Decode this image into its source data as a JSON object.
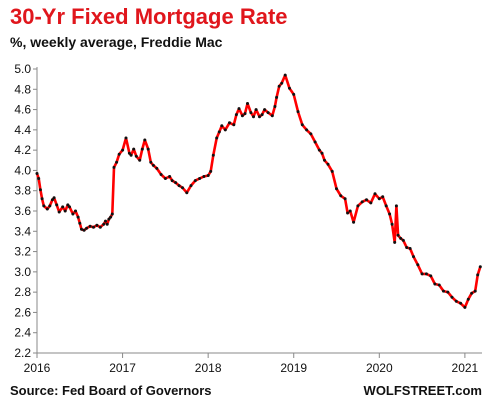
{
  "header": {
    "title": "30-Yr Fixed Mortgage Rate",
    "subtitle": "%, weekly average, Freddie Mac"
  },
  "footer": {
    "source": "Source: Fed Board of Governors",
    "brand": "WOLFSTREET.com"
  },
  "colors": {
    "line": "#ff0000",
    "marker": "#111111",
    "title": "#e0161c",
    "axis": "#888888"
  },
  "chart_data": {
    "type": "line",
    "title": "30-Yr Fixed Mortgage Rate",
    "subtitle": "%, weekly average, Freddie Mac",
    "xlabel": "",
    "ylabel": "",
    "x_is_decimal_year": true,
    "xlim": [
      2016.0,
      2021.2
    ],
    "ylim": [
      2.2,
      5.0
    ],
    "yticks": [
      2.2,
      2.4,
      2.6,
      2.8,
      3.0,
      3.2,
      3.4,
      3.6,
      3.8,
      4.0,
      4.2,
      4.4,
      4.6,
      4.8,
      5.0
    ],
    "ytick_labels": [
      "2.2",
      "2.4",
      "2.6",
      "2.8",
      "3.0",
      "3.2",
      "3.4",
      "3.6",
      "3.8",
      "4.0",
      "4.2",
      "4.4",
      "4.6",
      "4.8",
      "5.0"
    ],
    "xticks": [
      2016,
      2017,
      2018,
      2019,
      2020,
      2021
    ],
    "xtick_labels": [
      "2016",
      "2017",
      "2018",
      "2019",
      "2020",
      "2021"
    ],
    "grid": false,
    "legend": "none",
    "series": [
      {
        "x": [
          2016.0,
          2016.02,
          2016.04,
          2016.06,
          2016.08,
          2016.12,
          2016.15,
          2016.18,
          2016.2,
          2016.23,
          2016.26,
          2016.3,
          2016.33,
          2016.36,
          2016.38,
          2016.42,
          2016.45,
          2016.48,
          2016.5,
          2016.52,
          2016.55,
          2016.58,
          2016.62,
          2016.66,
          2016.7,
          2016.74,
          2016.78,
          2016.8,
          2016.82,
          2016.84,
          2016.86,
          2016.88,
          2016.9,
          2016.93,
          2016.96,
          2017.0,
          2017.04,
          2017.08,
          2017.1,
          2017.13,
          2017.16,
          2017.2,
          2017.23,
          2017.26,
          2017.3,
          2017.33,
          2017.36,
          2017.4,
          2017.45,
          2017.5,
          2017.55,
          2017.58,
          2017.62,
          2017.66,
          2017.7,
          2017.75,
          2017.8,
          2017.85,
          2017.9,
          2017.95,
          2018.0,
          2018.03,
          2018.06,
          2018.1,
          2018.13,
          2018.16,
          2018.2,
          2018.25,
          2018.3,
          2018.33,
          2018.36,
          2018.4,
          2018.43,
          2018.46,
          2018.5,
          2018.53,
          2018.56,
          2018.6,
          2018.63,
          2018.66,
          2018.7,
          2018.75,
          2018.78,
          2018.8,
          2018.83,
          2018.86,
          2018.9,
          2018.95,
          2019.0,
          2019.05,
          2019.1,
          2019.15,
          2019.2,
          2019.25,
          2019.3,
          2019.33,
          2019.36,
          2019.4,
          2019.45,
          2019.5,
          2019.55,
          2019.6,
          2019.63,
          2019.66,
          2019.7,
          2019.75,
          2019.8,
          2019.85,
          2019.9,
          2019.95,
          2020.0,
          2020.04,
          2020.08,
          2020.12,
          2020.15,
          2020.18,
          2020.2,
          2020.22,
          2020.25,
          2020.28,
          2020.32,
          2020.36,
          2020.4,
          2020.45,
          2020.5,
          2020.55,
          2020.6,
          2020.65,
          2020.7,
          2020.75,
          2020.8,
          2020.85,
          2020.9,
          2020.95,
          2021.0,
          2021.04,
          2021.08,
          2021.12,
          2021.15,
          2021.18
        ],
        "y": [
          3.97,
          3.92,
          3.81,
          3.72,
          3.65,
          3.62,
          3.65,
          3.71,
          3.73,
          3.66,
          3.59,
          3.64,
          3.6,
          3.66,
          3.64,
          3.57,
          3.6,
          3.54,
          3.48,
          3.42,
          3.41,
          3.43,
          3.45,
          3.44,
          3.46,
          3.44,
          3.47,
          3.5,
          3.47,
          3.52,
          3.54,
          3.57,
          4.03,
          4.08,
          4.16,
          4.2,
          4.32,
          4.17,
          4.15,
          4.21,
          4.14,
          4.1,
          4.21,
          4.3,
          4.21,
          4.08,
          4.05,
          4.02,
          3.96,
          3.92,
          3.94,
          3.9,
          3.88,
          3.85,
          3.83,
          3.78,
          3.85,
          3.9,
          3.92,
          3.94,
          3.95,
          3.99,
          4.15,
          4.32,
          4.38,
          4.44,
          4.4,
          4.47,
          4.45,
          4.55,
          4.61,
          4.54,
          4.56,
          4.66,
          4.57,
          4.53,
          4.6,
          4.53,
          4.55,
          4.6,
          4.57,
          4.54,
          4.63,
          4.72,
          4.83,
          4.86,
          4.94,
          4.81,
          4.75,
          4.58,
          4.45,
          4.4,
          4.36,
          4.28,
          4.2,
          4.17,
          4.1,
          4.06,
          3.99,
          3.82,
          3.75,
          3.72,
          3.58,
          3.6,
          3.49,
          3.65,
          3.69,
          3.71,
          3.68,
          3.77,
          3.72,
          3.74,
          3.65,
          3.57,
          3.47,
          3.29,
          3.65,
          3.36,
          3.33,
          3.31,
          3.24,
          3.23,
          3.15,
          3.07,
          2.98,
          2.98,
          2.96,
          2.88,
          2.87,
          2.81,
          2.8,
          2.75,
          2.71,
          2.69,
          2.65,
          2.73,
          2.79,
          2.81,
          2.97,
          3.05
        ]
      }
    ]
  }
}
